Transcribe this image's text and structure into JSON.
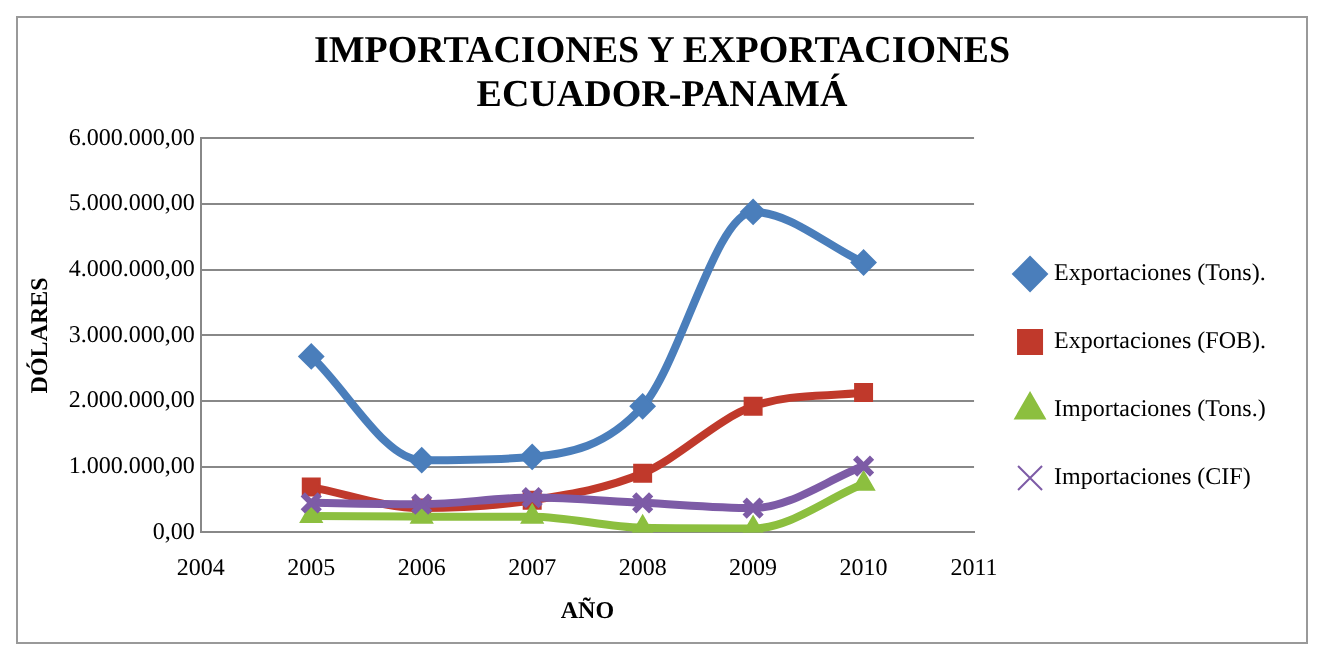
{
  "chart_data": {
    "type": "line",
    "title": "IMPORTACIONES Y EXPORTACIONES ECUADOR-PANAMÁ",
    "xlabel": "AÑO",
    "ylabel": "DÓLARES",
    "x": [
      2005,
      2006,
      2007,
      2008,
      2009,
      2010
    ],
    "series": [
      {
        "name": "Exportaciones (Tons).",
        "color": "#4a7ebb",
        "marker": "diamond",
        "values": [
          2680000,
          1100000,
          1150000,
          1920000,
          4880000,
          4110000
        ]
      },
      {
        "name": "Exportaciones (FOB).",
        "color": "#c0392b",
        "marker": "square",
        "values": [
          690000,
          370000,
          490000,
          900000,
          1920000,
          2130000
        ]
      },
      {
        "name": "Importaciones (Tons.)",
        "color": "#8cbf3f",
        "marker": "triangle",
        "values": [
          250000,
          240000,
          240000,
          70000,
          60000,
          740000
        ]
      },
      {
        "name": "Importaciones (CIF)",
        "color": "#7d5ba6",
        "marker": "cross",
        "values": [
          450000,
          430000,
          530000,
          450000,
          370000,
          1010000
        ]
      }
    ],
    "xlim": [
      2004,
      2011
    ],
    "xticks": [
      2004,
      2005,
      2006,
      2007,
      2008,
      2009,
      2010,
      2011
    ],
    "ylim": [
      0,
      6000000
    ],
    "yticks": [
      {
        "value": 0,
        "label": "0,00"
      },
      {
        "value": 1000000,
        "label": "1.000.000,00"
      },
      {
        "value": 2000000,
        "label": "2.000.000,00"
      },
      {
        "value": 3000000,
        "label": "3.000.000,00"
      },
      {
        "value": 4000000,
        "label": "4.000.000,00"
      },
      {
        "value": 5000000,
        "label": "5.000.000,00"
      },
      {
        "value": 6000000,
        "label": "6.000.000,00"
      }
    ],
    "grid": "y",
    "legend": "right"
  }
}
